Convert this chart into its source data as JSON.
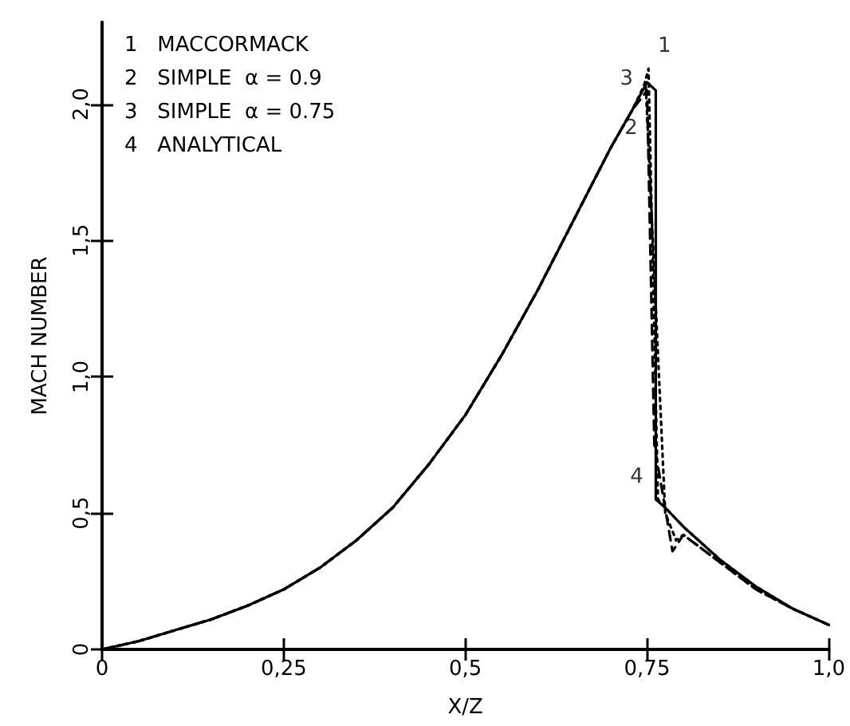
{
  "chart_data": {
    "type": "line",
    "xlabel": "X/Z",
    "ylabel": "MACH NUMBER",
    "xlim": [
      0,
      1.0
    ],
    "ylim": [
      0,
      2.3
    ],
    "xticks": [
      0,
      {
        "value": 0.25,
        "label": "0,25"
      },
      {
        "value": 0.5,
        "label": "0,5"
      },
      {
        "value": 0.75,
        "label": "0,75"
      },
      {
        "value": 1.0,
        "label": "1,0"
      }
    ],
    "yticks": [
      0,
      {
        "value": 0.5,
        "label": "0,5"
      },
      {
        "value": 1.0,
        "label": "1,0"
      },
      {
        "value": 1.5,
        "label": "1,5"
      },
      {
        "value": 2.0,
        "label": "2,0"
      }
    ],
    "grid": false,
    "marker": "none",
    "series": [
      {
        "color": "#000000",
        "line_style": "dotted",
        "x": [
          0,
          0.05,
          0.1,
          0.15,
          0.2,
          0.25,
          0.3,
          0.35,
          0.4,
          0.45,
          0.5,
          0.55,
          0.6,
          0.65,
          0.7,
          0.73,
          0.745,
          0.752,
          0.765,
          0.775,
          0.8,
          0.85,
          0.9,
          0.95,
          1.0
        ],
        "values": [
          0,
          0.03,
          0.07,
          0.11,
          0.16,
          0.22,
          0.3,
          0.4,
          0.52,
          0.68,
          0.86,
          1.08,
          1.32,
          1.58,
          1.84,
          1.98,
          2.06,
          2.13,
          0.55,
          0.52,
          0.45,
          0.33,
          0.23,
          0.15,
          0.09
        ]
      },
      {
        "color": "#000000",
        "line_style": "dashed",
        "x": [
          0,
          0.05,
          0.1,
          0.15,
          0.2,
          0.25,
          0.3,
          0.35,
          0.4,
          0.45,
          0.5,
          0.55,
          0.6,
          0.65,
          0.7,
          0.73,
          0.75,
          0.76,
          0.785,
          0.8,
          0.85,
          0.9,
          0.95,
          1.0
        ],
        "values": [
          0,
          0.03,
          0.07,
          0.11,
          0.16,
          0.22,
          0.3,
          0.4,
          0.52,
          0.68,
          0.86,
          1.08,
          1.32,
          1.58,
          1.84,
          1.98,
          2.05,
          0.75,
          0.36,
          0.42,
          0.32,
          0.22,
          0.15,
          0.09
        ]
      },
      {
        "color": "#000000",
        "line_style": "dotted",
        "x": [
          0,
          0.05,
          0.1,
          0.15,
          0.2,
          0.25,
          0.3,
          0.35,
          0.4,
          0.45,
          0.5,
          0.55,
          0.6,
          0.65,
          0.7,
          0.73,
          0.748,
          0.775,
          0.79,
          0.8,
          0.85,
          0.9,
          0.95,
          1.0
        ],
        "values": [
          0,
          0.03,
          0.07,
          0.11,
          0.16,
          0.22,
          0.3,
          0.4,
          0.52,
          0.68,
          0.86,
          1.08,
          1.32,
          1.58,
          1.84,
          1.98,
          2.08,
          0.5,
          0.4,
          0.42,
          0.32,
          0.22,
          0.15,
          0.09
        ]
      },
      {
        "color": "#000000",
        "line_style": "solid",
        "x": [
          0,
          0.05,
          0.1,
          0.15,
          0.2,
          0.25,
          0.3,
          0.35,
          0.4,
          0.45,
          0.5,
          0.55,
          0.6,
          0.65,
          0.7,
          0.73,
          0.75,
          0.762,
          0.762,
          0.775,
          0.8,
          0.85,
          0.9,
          0.95,
          1.0
        ],
        "values": [
          0,
          0.03,
          0.07,
          0.11,
          0.16,
          0.22,
          0.3,
          0.4,
          0.52,
          0.68,
          0.86,
          1.08,
          1.32,
          1.58,
          1.84,
          1.98,
          2.08,
          2.05,
          0.55,
          0.52,
          0.45,
          0.33,
          0.23,
          0.15,
          0.09
        ]
      }
    ],
    "annotations": [
      "1   MACCORMACK",
      "2   SIMPLE  α = 0.9",
      "3   SIMPLE  α = 0.75",
      "4   ANALYTICAL",
      {
        "text": "1",
        "x": 0.752,
        "y": 2.13
      },
      {
        "text": "2",
        "x": 0.75,
        "y": 2.05
      },
      {
        "text": "3",
        "x": 0.748,
        "y": 2.08
      },
      {
        "text": "4",
        "x": 0.762,
        "y": 0.55
      }
    ]
  }
}
